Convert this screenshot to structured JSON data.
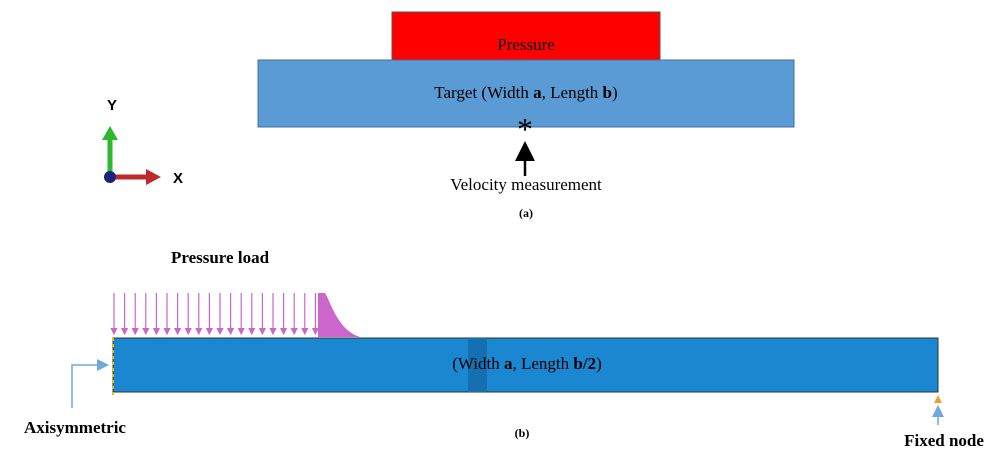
{
  "panel_a": {
    "pressure_label": "Pressure",
    "target_label": [
      "Target (Width ",
      "a",
      ", Length ",
      "b",
      ")"
    ],
    "marker": "*",
    "measurement_label": "Velocity measurement",
    "caption": "(a)",
    "axis_y": "Y",
    "axis_x": "X"
  },
  "panel_b": {
    "load_label": "Pressure load",
    "bar_label": [
      "(Width ",
      "a",
      ", Length ",
      "b/2",
      ")"
    ],
    "left_label": "Axisymmetric",
    "caption": "(b)",
    "right_label": "Fixed node"
  }
}
